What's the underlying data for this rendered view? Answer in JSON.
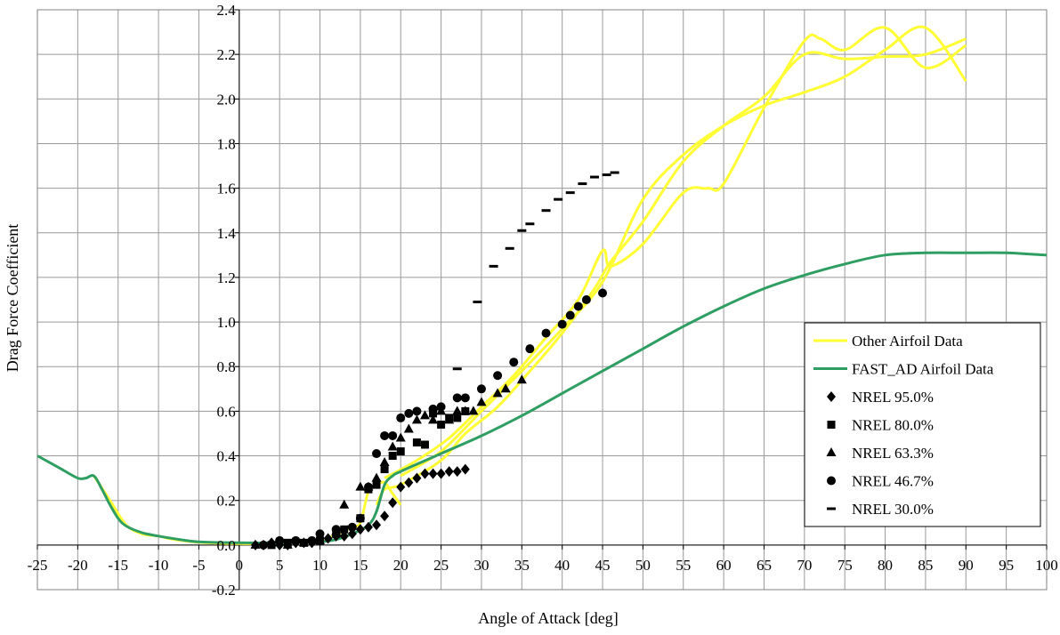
{
  "chart_data": {
    "type": "line",
    "xlabel": "Angle of Attack [deg]",
    "ylabel": "Drag Force Coefficient",
    "xlim": [
      -25,
      100
    ],
    "ylim": [
      -0.2,
      2.4
    ],
    "xticks": [
      -25,
      -20,
      -15,
      -10,
      -5,
      0,
      5,
      10,
      15,
      20,
      25,
      30,
      35,
      40,
      45,
      50,
      55,
      60,
      65,
      70,
      75,
      80,
      85,
      90,
      95,
      100
    ],
    "xtick_labels": [
      "-25",
      "-20",
      "-15",
      "-10",
      "-5",
      "0",
      "5",
      "10",
      "15",
      "20",
      "25",
      "30",
      "35",
      "40",
      "45",
      "50",
      "55",
      "60",
      "65",
      "70",
      "75",
      "80",
      "85",
      "90",
      "95",
      "100"
    ],
    "yticks": [
      -0.2,
      0.0,
      0.2,
      0.4,
      0.6,
      0.8,
      1.0,
      1.2,
      1.4,
      1.6,
      1.8,
      2.0,
      2.2,
      2.4
    ],
    "ytick_labels": [
      "-0.2",
      "0.0",
      "0.2",
      "0.4",
      "0.6",
      "0.8",
      "1.0",
      "1.2",
      "1.4",
      "1.6",
      "1.8",
      "2.0",
      "2.2",
      "2.4"
    ],
    "grid": true,
    "legend_position": "right",
    "series": [
      {
        "name": "Other Airfoil Data",
        "kind": "line",
        "color": "#FFFF33",
        "curves": [
          [
            [
              -18,
              0.31
            ],
            [
              -16,
              0.2
            ],
            [
              -14,
              0.09
            ],
            [
              -12,
              0.05
            ],
            [
              -10,
              0.04
            ],
            [
              -8,
              0.025
            ],
            [
              -5,
              0.012
            ],
            [
              0,
              0.006
            ],
            [
              5,
              0.008
            ],
            [
              10,
              0.02
            ],
            [
              14,
              0.08
            ],
            [
              15,
              0.1
            ],
            [
              16,
              0.24
            ],
            [
              17,
              0.27
            ],
            [
              18,
              0.28
            ],
            [
              19,
              0.23
            ],
            [
              20,
              0.18
            ]
          ],
          [
            [
              17,
              0.18
            ],
            [
              18,
              0.25
            ],
            [
              20,
              0.27
            ],
            [
              25,
              0.38
            ],
            [
              28,
              0.5
            ],
            [
              32,
              0.62
            ],
            [
              36,
              0.78
            ],
            [
              40,
              0.95
            ],
            [
              44,
              1.15
            ],
            [
              46,
              1.27
            ],
            [
              50,
              1.45
            ],
            [
              55,
              1.72
            ],
            [
              60,
              1.88
            ],
            [
              65,
              2.01
            ],
            [
              70,
              2.2
            ],
            [
              75,
              2.18
            ],
            [
              80,
              2.19
            ],
            [
              85,
              2.2
            ],
            [
              90,
              2.27
            ]
          ],
          [
            [
              18,
              0.3
            ],
            [
              22,
              0.38
            ],
            [
              26,
              0.48
            ],
            [
              30,
              0.62
            ],
            [
              34,
              0.76
            ],
            [
              38,
              0.93
            ],
            [
              42,
              1.1
            ],
            [
              45,
              1.32
            ],
            [
              46,
              1.25
            ],
            [
              50,
              1.35
            ],
            [
              55,
              1.58
            ],
            [
              58,
              1.6
            ],
            [
              60,
              1.62
            ],
            [
              65,
              1.96
            ],
            [
              70,
              2.26
            ],
            [
              72,
              2.27
            ],
            [
              75,
              2.22
            ],
            [
              80,
              2.32
            ],
            [
              85,
              2.14
            ],
            [
              90,
              2.24
            ]
          ],
          [
            [
              20,
              0.31
            ],
            [
              25,
              0.42
            ],
            [
              30,
              0.6
            ],
            [
              35,
              0.78
            ],
            [
              40,
              0.97
            ],
            [
              45,
              1.18
            ],
            [
              50,
              1.55
            ],
            [
              55,
              1.75
            ],
            [
              60,
              1.88
            ],
            [
              65,
              1.97
            ],
            [
              70,
              2.03
            ],
            [
              75,
              2.1
            ],
            [
              80,
              2.22
            ],
            [
              85,
              2.32
            ],
            [
              90,
              2.08
            ]
          ]
        ]
      },
      {
        "name": "FAST_AD Airfoil Data",
        "kind": "line",
        "color": "#2E9E62",
        "curves": [
          [
            [
              -25,
              0.4
            ],
            [
              -22,
              0.34
            ],
            [
              -20,
              0.3
            ],
            [
              -19,
              0.3
            ],
            [
              -18,
              0.31
            ],
            [
              -17,
              0.25
            ],
            [
              -16,
              0.18
            ],
            [
              -15,
              0.12
            ],
            [
              -14,
              0.085
            ],
            [
              -12,
              0.055
            ],
            [
              -10,
              0.04
            ],
            [
              -8,
              0.028
            ],
            [
              -5,
              0.014
            ],
            [
              0,
              0.01
            ],
            [
              5,
              0.01
            ],
            [
              10,
              0.015
            ],
            [
              12,
              0.025
            ],
            [
              14,
              0.05
            ],
            [
              16,
              0.09
            ],
            [
              17,
              0.15
            ],
            [
              18,
              0.27
            ],
            [
              19,
              0.31
            ],
            [
              20,
              0.33
            ],
            [
              25,
              0.41
            ],
            [
              30,
              0.49
            ],
            [
              35,
              0.58
            ],
            [
              40,
              0.68
            ],
            [
              45,
              0.78
            ],
            [
              50,
              0.88
            ],
            [
              55,
              0.98
            ],
            [
              60,
              1.07
            ],
            [
              65,
              1.15
            ],
            [
              70,
              1.21
            ],
            [
              75,
              1.26
            ],
            [
              80,
              1.3
            ],
            [
              85,
              1.31
            ],
            [
              90,
              1.31
            ],
            [
              95,
              1.31
            ],
            [
              100,
              1.3
            ]
          ]
        ]
      },
      {
        "name": "NREL 95.0%",
        "kind": "scatter",
        "marker": "diamond",
        "color": "#000000",
        "points": [
          [
            2,
            0.0
          ],
          [
            3,
            0.0
          ],
          [
            4,
            0.01
          ],
          [
            5,
            0.0
          ],
          [
            6,
            0.0
          ],
          [
            7,
            0.01
          ],
          [
            8,
            0.01
          ],
          [
            9,
            0.01
          ],
          [
            10,
            0.02
          ],
          [
            11,
            0.03
          ],
          [
            12,
            0.04
          ],
          [
            13,
            0.04
          ],
          [
            14,
            0.05
          ],
          [
            15,
            0.07
          ],
          [
            16,
            0.08
          ],
          [
            17,
            0.09
          ],
          [
            18,
            0.13
          ],
          [
            19,
            0.19
          ],
          [
            20,
            0.26
          ],
          [
            21,
            0.28
          ],
          [
            22,
            0.3
          ],
          [
            23,
            0.32
          ],
          [
            24,
            0.32
          ],
          [
            25,
            0.32
          ],
          [
            26,
            0.33
          ],
          [
            27,
            0.33
          ],
          [
            28,
            0.34
          ]
        ]
      },
      {
        "name": "NREL 80.0%",
        "kind": "scatter",
        "marker": "square",
        "color": "#000000",
        "points": [
          [
            4,
            0.0
          ],
          [
            6,
            0.01
          ],
          [
            8,
            0.01
          ],
          [
            10,
            0.02
          ],
          [
            12,
            0.05
          ],
          [
            13,
            0.07
          ],
          [
            15,
            0.12
          ],
          [
            16,
            0.25
          ],
          [
            17,
            0.27
          ],
          [
            18,
            0.34
          ],
          [
            19,
            0.4
          ],
          [
            20,
            0.42
          ],
          [
            22,
            0.46
          ],
          [
            23,
            0.45
          ],
          [
            24,
            0.59
          ],
          [
            25,
            0.54
          ],
          [
            26,
            0.57
          ],
          [
            27,
            0.57
          ],
          [
            28,
            0.6
          ]
        ]
      },
      {
        "name": "NREL 63.3%",
        "kind": "scatter",
        "marker": "triangle",
        "color": "#000000",
        "points": [
          [
            2,
            0.0
          ],
          [
            4,
            0.01
          ],
          [
            6,
            0.0
          ],
          [
            8,
            0.01
          ],
          [
            10,
            0.02
          ],
          [
            12,
            0.06
          ],
          [
            13,
            0.18
          ],
          [
            15,
            0.26
          ],
          [
            16,
            0.26
          ],
          [
            17,
            0.3
          ],
          [
            18,
            0.37
          ],
          [
            19,
            0.44
          ],
          [
            20,
            0.48
          ],
          [
            21,
            0.52
          ],
          [
            22,
            0.56
          ],
          [
            23,
            0.58
          ],
          [
            24,
            0.56
          ],
          [
            25,
            0.6
          ],
          [
            26,
            0.56
          ],
          [
            27,
            0.6
          ],
          [
            28,
            0.6
          ],
          [
            29,
            0.6
          ],
          [
            30,
            0.64
          ],
          [
            32,
            0.68
          ],
          [
            33,
            0.7
          ],
          [
            35,
            0.74
          ]
        ]
      },
      {
        "name": "NREL 46.7%",
        "kind": "scatter",
        "marker": "circle",
        "color": "#000000",
        "points": [
          [
            3,
            0.0
          ],
          [
            5,
            0.02
          ],
          [
            7,
            0.02
          ],
          [
            9,
            0.02
          ],
          [
            10,
            0.05
          ],
          [
            12,
            0.07
          ],
          [
            14,
            0.08
          ],
          [
            15,
            0.12
          ],
          [
            16,
            0.26
          ],
          [
            17,
            0.41
          ],
          [
            18,
            0.49
          ],
          [
            19,
            0.49
          ],
          [
            20,
            0.57
          ],
          [
            21,
            0.59
          ],
          [
            22,
            0.6
          ],
          [
            24,
            0.61
          ],
          [
            25,
            0.62
          ],
          [
            27,
            0.66
          ],
          [
            28,
            0.66
          ],
          [
            30,
            0.7
          ],
          [
            32,
            0.76
          ],
          [
            34,
            0.82
          ],
          [
            36,
            0.88
          ],
          [
            38,
            0.95
          ],
          [
            40,
            0.99
          ],
          [
            41,
            1.03
          ],
          [
            42,
            1.07
          ],
          [
            43,
            1.1
          ],
          [
            45,
            1.13
          ]
        ]
      },
      {
        "name": "NREL 30.0%",
        "kind": "scatter",
        "marker": "dash",
        "color": "#000000",
        "points": [
          [
            24.5,
            0.61
          ],
          [
            27,
            0.79
          ],
          [
            29.5,
            1.09
          ],
          [
            31.5,
            1.25
          ],
          [
            33.5,
            1.33
          ],
          [
            35,
            1.41
          ],
          [
            36,
            1.44
          ],
          [
            38,
            1.5
          ],
          [
            39.5,
            1.55
          ],
          [
            41,
            1.58
          ],
          [
            42.5,
            1.62
          ],
          [
            44,
            1.65
          ],
          [
            45.5,
            1.66
          ],
          [
            46.5,
            1.67
          ]
        ]
      }
    ]
  }
}
